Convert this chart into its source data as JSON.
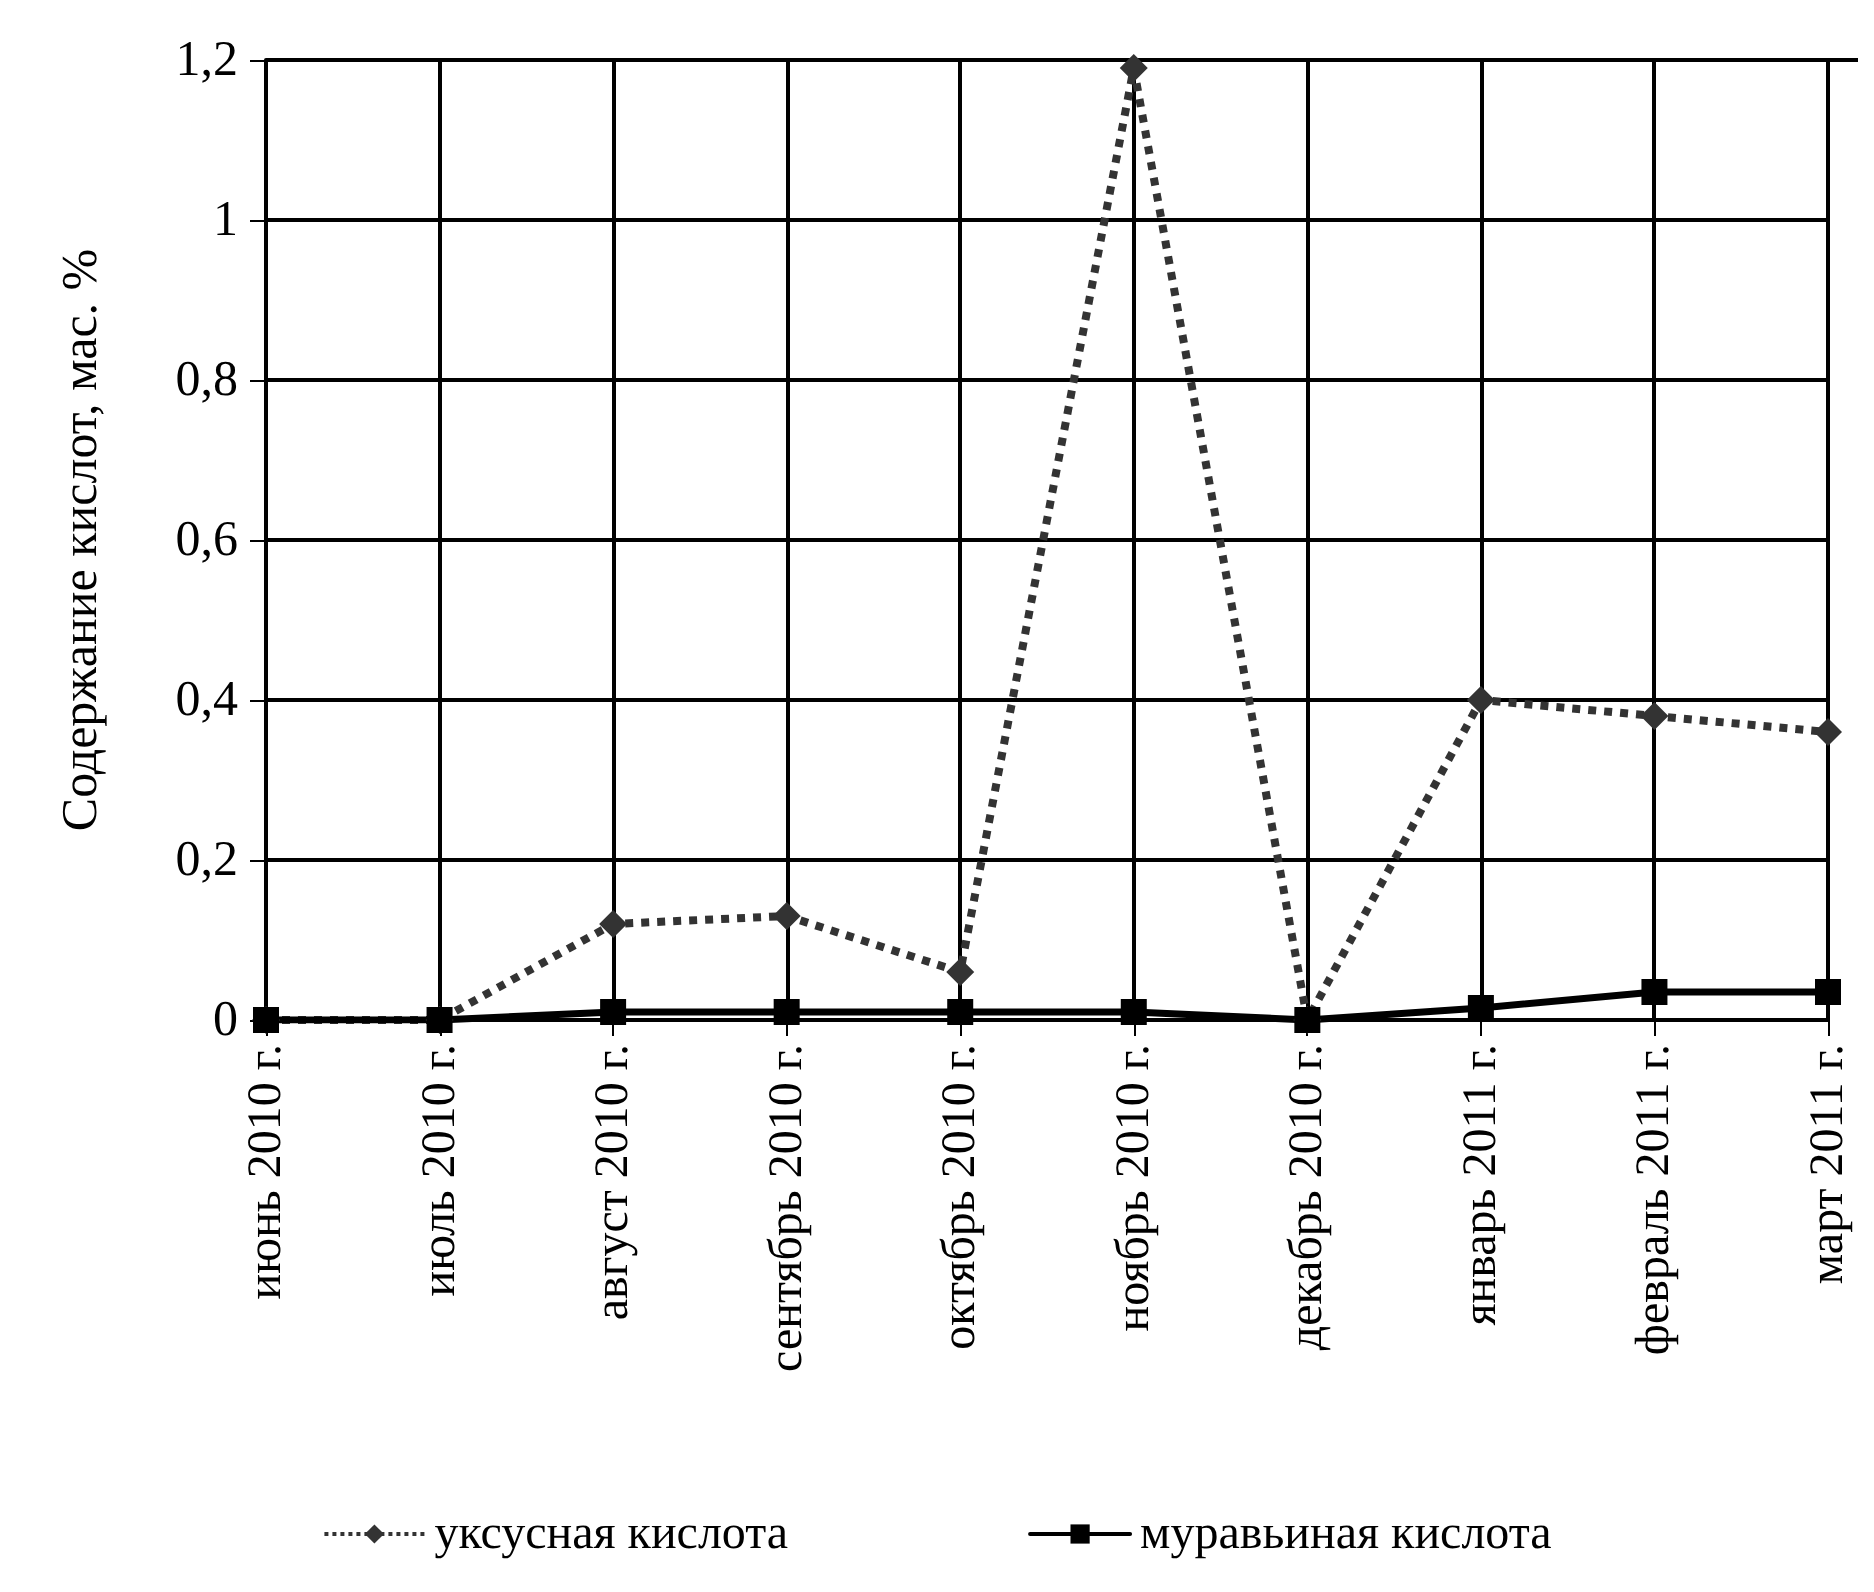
{
  "chart_data": {
    "type": "line",
    "ylabel": "Содержание кислот, мас. %",
    "categories": [
      "июнь 2010 г.",
      "июль 2010 г.",
      "август 2010 г.",
      "сентябрь 2010 г.",
      "октябрь 2010 г.",
      "ноябрь 2010 г.",
      "декабрь 2010 г.",
      "январь 2011 г.",
      "февраль 2011 г.",
      "март 2011 г."
    ],
    "series": [
      {
        "name": "уксусная кислота",
        "color": "#333333",
        "marker": "diamond",
        "line_style": "dotted",
        "values": [
          0,
          0,
          0.12,
          0.13,
          0.06,
          1.19,
          0,
          0.4,
          0.38,
          0.36
        ]
      },
      {
        "name": "муравьиная кислота",
        "color": "#000000",
        "marker": "square",
        "line_style": "solid",
        "values": [
          0,
          0,
          0.01,
          0.01,
          0.01,
          0.01,
          0,
          0.015,
          0.035,
          0.035
        ]
      }
    ],
    "ylim": [
      0,
      1.2
    ],
    "yticks": [
      0,
      {
        "value": 0.2,
        "label": "0,2"
      },
      {
        "value": 0.4,
        "label": "0,4"
      },
      {
        "value": 0.6,
        "label": "0,6"
      },
      {
        "value": 0.8,
        "label": "0,8"
      },
      1,
      {
        "value": 1.2,
        "label": "1,2"
      }
    ],
    "grid": true,
    "legend": "bottom"
  }
}
